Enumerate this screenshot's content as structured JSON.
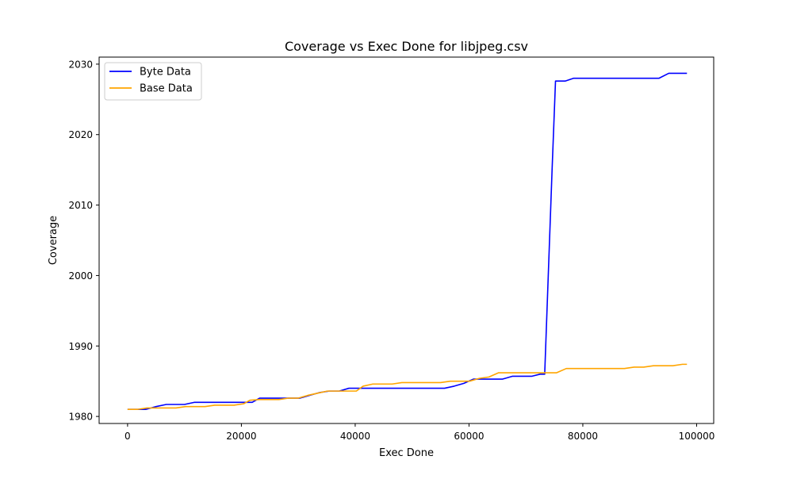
{
  "chart_data": {
    "type": "line",
    "title": "Coverage vs Exec Done for libjpeg.csv",
    "xlabel": "Exec Done",
    "ylabel": "Coverage",
    "xlim": [
      -5000,
      103000
    ],
    "ylim": [
      1979,
      2031
    ],
    "xticks": [
      0,
      20000,
      40000,
      60000,
      80000,
      100000
    ],
    "yticks": [
      1980,
      1990,
      2000,
      2010,
      2020,
      2030
    ],
    "grid": false,
    "legend_position": "upper-left",
    "series": [
      {
        "name": "Byte Data",
        "color": "#0000ff",
        "x": [
          0,
          1500,
          3200,
          5000,
          6800,
          8500,
          10000,
          11700,
          13500,
          15300,
          17000,
          18700,
          20200,
          21900,
          23200,
          25000,
          26800,
          28500,
          30300,
          32000,
          33800,
          35400,
          37200,
          38900,
          40600,
          42300,
          44100,
          45800,
          47500,
          49200,
          51000,
          52700,
          54400,
          55700,
          57400,
          59100,
          60800,
          62500,
          64200,
          65900,
          67600,
          69300,
          71000,
          72500,
          73300,
          74600,
          75200,
          76900,
          78400,
          80200,
          81900,
          83600,
          85300,
          87000,
          88700,
          90400,
          92100,
          93400,
          95100,
          96800,
          98300
        ],
        "y": [
          1981.0,
          1981.0,
          1981.0,
          1981.4,
          1981.7,
          1981.7,
          1981.7,
          1982.0,
          1982.0,
          1982.0,
          1982.0,
          1982.0,
          1982.0,
          1982.0,
          1982.6,
          1982.6,
          1982.6,
          1982.6,
          1982.6,
          1983.0,
          1983.4,
          1983.6,
          1983.6,
          1984.0,
          1984.0,
          1984.0,
          1984.0,
          1984.0,
          1984.0,
          1984.0,
          1984.0,
          1984.0,
          1984.0,
          1984.0,
          1984.3,
          1984.7,
          1985.3,
          1985.3,
          1985.3,
          1985.3,
          1985.7,
          1985.7,
          1985.7,
          1986.0,
          1986.0,
          2015.0,
          2027.6,
          2027.6,
          2028.0,
          2028.0,
          2028.0,
          2028.0,
          2028.0,
          2028.0,
          2028.0,
          2028.0,
          2028.0,
          2028.0,
          2028.7,
          2028.7,
          2028.7
        ]
      },
      {
        "name": "Base Data",
        "color": "#ffa500",
        "x": [
          0,
          1700,
          3400,
          5100,
          6800,
          8500,
          10200,
          11900,
          13600,
          15300,
          17000,
          18700,
          20400,
          21500,
          23200,
          24900,
          26600,
          28300,
          30000,
          31700,
          33400,
          35100,
          36800,
          38500,
          40200,
          41400,
          43100,
          44800,
          46500,
          48200,
          49900,
          51600,
          53300,
          55000,
          56700,
          58400,
          60100,
          61800,
          63500,
          65200,
          66900,
          68600,
          70300,
          72000,
          73700,
          75400,
          77100,
          78800,
          80500,
          82200,
          83900,
          85600,
          87300,
          89000,
          90700,
          92400,
          94100,
          95800,
          97500,
          98300
        ],
        "y": [
          1981.0,
          1981.0,
          1981.2,
          1981.2,
          1981.2,
          1981.2,
          1981.4,
          1981.4,
          1981.4,
          1981.6,
          1981.6,
          1981.6,
          1981.8,
          1982.3,
          1982.4,
          1982.4,
          1982.4,
          1982.6,
          1982.6,
          1983.0,
          1983.3,
          1983.6,
          1983.6,
          1983.6,
          1983.6,
          1984.3,
          1984.6,
          1984.6,
          1984.6,
          1984.8,
          1984.8,
          1984.8,
          1984.8,
          1984.8,
          1985.0,
          1985.0,
          1985.0,
          1985.4,
          1985.6,
          1986.2,
          1986.2,
          1986.2,
          1986.2,
          1986.2,
          1986.2,
          1986.2,
          1986.8,
          1986.8,
          1986.8,
          1986.8,
          1986.8,
          1986.8,
          1986.8,
          1987.0,
          1987.0,
          1987.2,
          1987.2,
          1987.2,
          1987.4,
          1987.4
        ]
      }
    ]
  }
}
